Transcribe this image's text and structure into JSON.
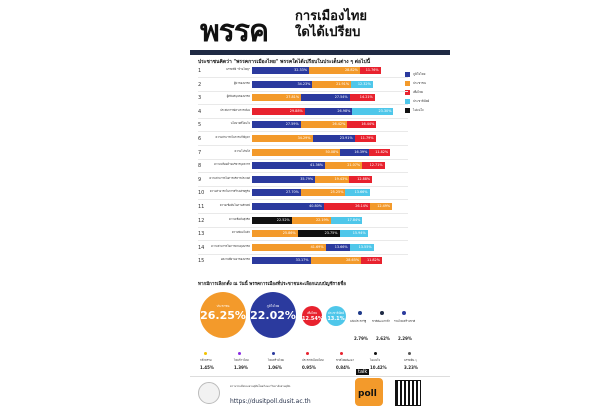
{
  "header": {
    "title_big": "พรรค",
    "title_line1": "การเมืองไทย",
    "title_line2": "ใดได้เปรียบ"
  },
  "subtitle": "ประชาชนคิดว่า \"พรรคการเมืองไทย\" พรรคใดได้เปรียบในประเด็นต่าง ๆ ต่อไปนี้",
  "colors": {
    "blue": "#2b3a9e",
    "orange": "#f39a2b",
    "red": "#e8222e",
    "cyan": "#4fc7ea",
    "black": "#111111",
    "navy": "#1f2a44"
  },
  "legend": [
    {
      "label": "ภูมิใจไทย",
      "color": "#2b3a9e"
    },
    {
      "label": "ประชาชน",
      "color": "#f39a2b"
    },
    {
      "label": "เพื่อไทย",
      "color": "#e8222e"
    },
    {
      "label": "ประชาธิปัตย์",
      "color": "#4fc7ea"
    },
    {
      "label": "ไม่แน่ใจ",
      "color": "#111111"
    }
  ],
  "chart_data": {
    "type": "bar",
    "stacked": true,
    "rows": [
      {
        "num": "1",
        "label": "พรรคที่มี \"บ้านใหญ่\"",
        "segments": [
          {
            "party": "ภูมิใจไทย",
            "value": 32.33
          },
          {
            "party": "ประชาชน",
            "value": 28.82
          },
          {
            "party": "เพื่อไทย",
            "value": 11.76
          }
        ]
      },
      {
        "num": "2",
        "label": "ผู้นำของพรรค",
        "segments": [
          {
            "party": "ภูมิใจไทย",
            "value": 34.23
          },
          {
            "party": "ประชาชน",
            "value": 21.91
          },
          {
            "party": "ประชาธิปัตย์",
            "value": 12.32
          }
        ]
      },
      {
        "num": "3",
        "label": "ผู้สนับสนุนของพรรค",
        "segments": [
          {
            "party": "ประชาชน",
            "value": 27.81
          },
          {
            "party": "ภูมิใจไทย",
            "value": 27.54
          },
          {
            "party": "เพื่อไทย",
            "value": 14.21
          }
        ]
      },
      {
        "num": "4",
        "label": "ประสบการณ์ทางการเมือง",
        "segments": [
          {
            "party": "เพื่อไทย",
            "value": 29.88
          },
          {
            "party": "ภูมิใจไทย",
            "value": 26.98
          },
          {
            "party": "ประชาธิปัตย์",
            "value": 23.3
          }
        ]
      },
      {
        "num": "5",
        "label": "นโยบายที่โดนใจ",
        "segments": [
          {
            "party": "ภูมิใจไทย",
            "value": 27.59
          },
          {
            "party": "ประชาชน",
            "value": 26.42
          },
          {
            "party": "เพื่อไทย",
            "value": 16.44
          }
        ]
      },
      {
        "num": "6",
        "label": "ความสามารถในการแก้ปัญหา",
        "segments": [
          {
            "party": "ประชาชน",
            "value": 34.29
          },
          {
            "party": "ภูมิใจไทย",
            "value": 23.91
          },
          {
            "party": "เพื่อไทย",
            "value": 11.79
          }
        ]
      },
      {
        "num": "7",
        "label": "ความโปร่งใส",
        "segments": [
          {
            "party": "ประชาชน",
            "value": 50.08
          },
          {
            "party": "ภูมิใจไทย",
            "value": 16.39
          },
          {
            "party": "เพื่อไทย",
            "value": 11.82
          }
        ]
      },
      {
        "num": "8",
        "label": "ความพร้อมด้านบริหารบุคลากร",
        "segments": [
          {
            "party": "ภูมิใจไทย",
            "value": 41.36
          },
          {
            "party": "ประชาชน",
            "value": 21.07
          },
          {
            "party": "เพื่อไทย",
            "value": 12.71
          }
        ]
      },
      {
        "num": "9",
        "label": "ความสามารถในการบริหารประเทศ",
        "segments": [
          {
            "party": "ภูมิใจไทย",
            "value": 35.79
          },
          {
            "party": "ประชาชน",
            "value": 19.43
          },
          {
            "party": "เพื่อไทย",
            "value": 12.88
          }
        ]
      },
      {
        "num": "10",
        "label": "ความสามารถในการสร้างเศรษฐกิจ",
        "segments": [
          {
            "party": "ภูมิใจไทย",
            "value": 27.7
          },
          {
            "party": "ประชาชน",
            "value": 25.25
          },
          {
            "party": "ประชาธิปัตย์",
            "value": 13.66
          }
        ]
      },
      {
        "num": "11",
        "label": "ความเชื่อมั่นในภาพลักษณ์",
        "segments": [
          {
            "party": "ภูมิใจไทย",
            "value": 40.8
          },
          {
            "party": "เพื่อไทย",
            "value": 26.14
          },
          {
            "party": "ประชาชน",
            "value": 12.49
          }
        ]
      },
      {
        "num": "12",
        "label": "ความเชื่อมั่นสุจริต",
        "segments": [
          {
            "party": "ไม่แน่ใจ",
            "value": 22.52
          },
          {
            "party": "ประชาชน",
            "value": 22.19
          },
          {
            "party": "ประชาธิปัตย์",
            "value": 17.84
          }
        ]
      },
      {
        "num": "13",
        "label": "ความนิยมในตัว",
        "segments": [
          {
            "party": "ประชาชน",
            "value": 25.86
          },
          {
            "party": "ไม่แน่ใจ",
            "value": 23.75
          },
          {
            "party": "ประชาธิปัตย์",
            "value": 15.94
          }
        ]
      },
      {
        "num": "14",
        "label": "ความสามารถในการควบคุมพรรค",
        "segments": [
          {
            "party": "ประชาชน",
            "value": 41.69
          },
          {
            "party": "ภูมิใจไทย",
            "value": 13.66
          },
          {
            "party": "ประชาธิปัตย์",
            "value": 13.55
          }
        ]
      },
      {
        "num": "15",
        "label": "ผลงานที่ผ่านมาของพรรค",
        "segments": [
          {
            "party": "ภูมิใจไทย",
            "value": 33.17
          },
          {
            "party": "ประชาชน",
            "value": 28.65
          },
          {
            "party": "เพื่อไทย",
            "value": 11.82
          }
        ]
      }
    ],
    "xlim": [
      0,
      85
    ]
  },
  "section2": {
    "title": "หากมีการเลือกตั้ง ณ วันนี้ พรรคการเมืองที่ประชาชนจะเลือกแบบบัญชีรายชื่อ",
    "big": [
      {
        "label": "ประชาชน",
        "value": "26.25%",
        "color": "#f39a2b"
      },
      {
        "label": "ภูมิใจไทย",
        "value": "22.02%",
        "color": "#2b3a9e"
      },
      {
        "label": "เพื่อไทย",
        "value": "12.54%",
        "color": "#e8222e"
      },
      {
        "label": "ประชาธิปัตย์",
        "value": "13.1%",
        "color": "#4fc7ea"
      }
    ],
    "mid": [
      {
        "label": "พลังประชารัฐ",
        "value": "2.79%",
        "color": "#1f3a8a"
      },
      {
        "label": "ชาติพัฒนากล้า",
        "value": "2.62%",
        "color": "#1f2a44"
      },
      {
        "label": "รวมไทยสร้างชาติ",
        "value": "2.29%",
        "color": "#2b3a9e"
      }
    ],
    "small": [
      {
        "label": "กล้าธรรม",
        "value": "1.45%",
        "color": "#f2c300"
      },
      {
        "label": "ไทยก้าวใหม่",
        "value": "1.39%",
        "color": "#8a2be2"
      },
      {
        "label": "ไทยสร้างไทย",
        "value": "1.06%",
        "color": "#2b3a9e"
      },
      {
        "label": "ประชาธิปไตยใหม่",
        "value": "0.95%",
        "color": "#e8222e"
      },
      {
        "label": "ชาติไทยพัฒนา",
        "value": "0.84%",
        "color": "#e8222e"
      },
      {
        "label": "ไม่แน่ใจ",
        "value": "10.42%",
        "color": "#111111"
      },
      {
        "label": "พรรคอื่น ๆ",
        "value": "3.23%",
        "color": "#555555"
      }
    ]
  },
  "footer": {
    "line1": "ความร่วมมือของสวนดุสิตโพลกับมหาวิทยาลัยสวนดุสิต",
    "url": "https://dusitpoll.dusit.ac.th",
    "brand": "poll",
    "talk": "talk"
  }
}
